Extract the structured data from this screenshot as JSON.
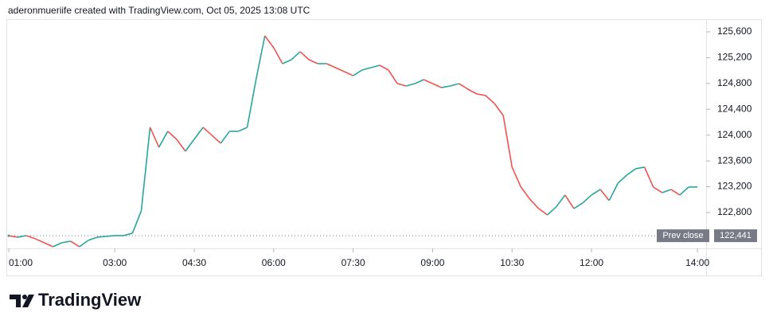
{
  "header": {
    "text": "aderonmueriife created with TradingView.com, Oct 05, 2025 13:08 UTC"
  },
  "logo": {
    "text": "TradingView"
  },
  "chart_data": {
    "type": "line",
    "x": [
      "01:00",
      "01:10",
      "01:20",
      "01:30",
      "01:40",
      "01:50",
      "02:00",
      "02:10",
      "02:20",
      "02:30",
      "02:40",
      "02:50",
      "03:00",
      "03:10",
      "03:20",
      "03:30",
      "03:40",
      "03:50",
      "04:00",
      "04:10",
      "04:20",
      "04:30",
      "04:40",
      "04:50",
      "05:00",
      "05:10",
      "05:20",
      "05:30",
      "05:40",
      "05:50",
      "06:00",
      "06:10",
      "06:20",
      "06:30",
      "06:40",
      "06:50",
      "07:00",
      "07:10",
      "07:20",
      "07:30",
      "07:40",
      "07:50",
      "08:00",
      "08:10",
      "08:20",
      "08:30",
      "08:40",
      "08:50",
      "09:00",
      "09:10",
      "09:20",
      "09:30",
      "09:40",
      "09:50",
      "10:00",
      "10:10",
      "10:20",
      "10:30",
      "10:40",
      "10:50",
      "11:00",
      "11:10",
      "11:20",
      "11:30",
      "11:40",
      "11:50",
      "12:00",
      "12:10",
      "12:20",
      "12:30",
      "12:40",
      "12:50",
      "13:00",
      "13:10",
      "13:20",
      "13:30",
      "13:40",
      "13:50",
      "14:00"
    ],
    "values": [
      122441,
      122418,
      122443,
      122394,
      122333,
      122271,
      122333,
      122357,
      122271,
      122370,
      122418,
      122431,
      122443,
      122443,
      122480,
      122826,
      124120,
      123812,
      124059,
      123936,
      123750,
      123936,
      124120,
      123997,
      123874,
      124059,
      124059,
      124120,
      124860,
      125538,
      125353,
      125107,
      125168,
      125292,
      125168,
      125107,
      125107,
      125045,
      124983,
      124921,
      125008,
      125045,
      125082,
      125008,
      124798,
      124761,
      124798,
      124860,
      124798,
      124737,
      124761,
      124798,
      124712,
      124638,
      124614,
      124490,
      124305,
      123504,
      123196,
      123011,
      122863,
      122764,
      122887,
      123072,
      122863,
      122949,
      123072,
      123158,
      122986,
      123257,
      123381,
      123479,
      123504,
      123196,
      123109,
      123158,
      123072,
      123196,
      123196
    ],
    "up_color": "#26a69a",
    "down_color": "#ef5350",
    "xlim": [
      "00:59",
      "14:08"
    ],
    "xticks": [
      "01:00",
      "03:00",
      "04:30",
      "06:00",
      "07:30",
      "09:00",
      "10:30",
      "12:00",
      "14:00"
    ],
    "ylim": [
      122245,
      125748
    ],
    "yticks": [
      {
        "value": 122800,
        "label": "122,800"
      },
      {
        "value": 123200,
        "label": "123,200"
      },
      {
        "value": 123600,
        "label": "123,600"
      },
      {
        "value": 124000,
        "label": "124,000"
      },
      {
        "value": 124400,
        "label": "124,400"
      },
      {
        "value": 124800,
        "label": "124,800"
      },
      {
        "value": 125200,
        "label": "125,200"
      },
      {
        "value": 125600,
        "label": "125,600"
      }
    ],
    "prev_close": {
      "label": "Prev close",
      "value": 122441,
      "value_label": "122,441"
    }
  }
}
